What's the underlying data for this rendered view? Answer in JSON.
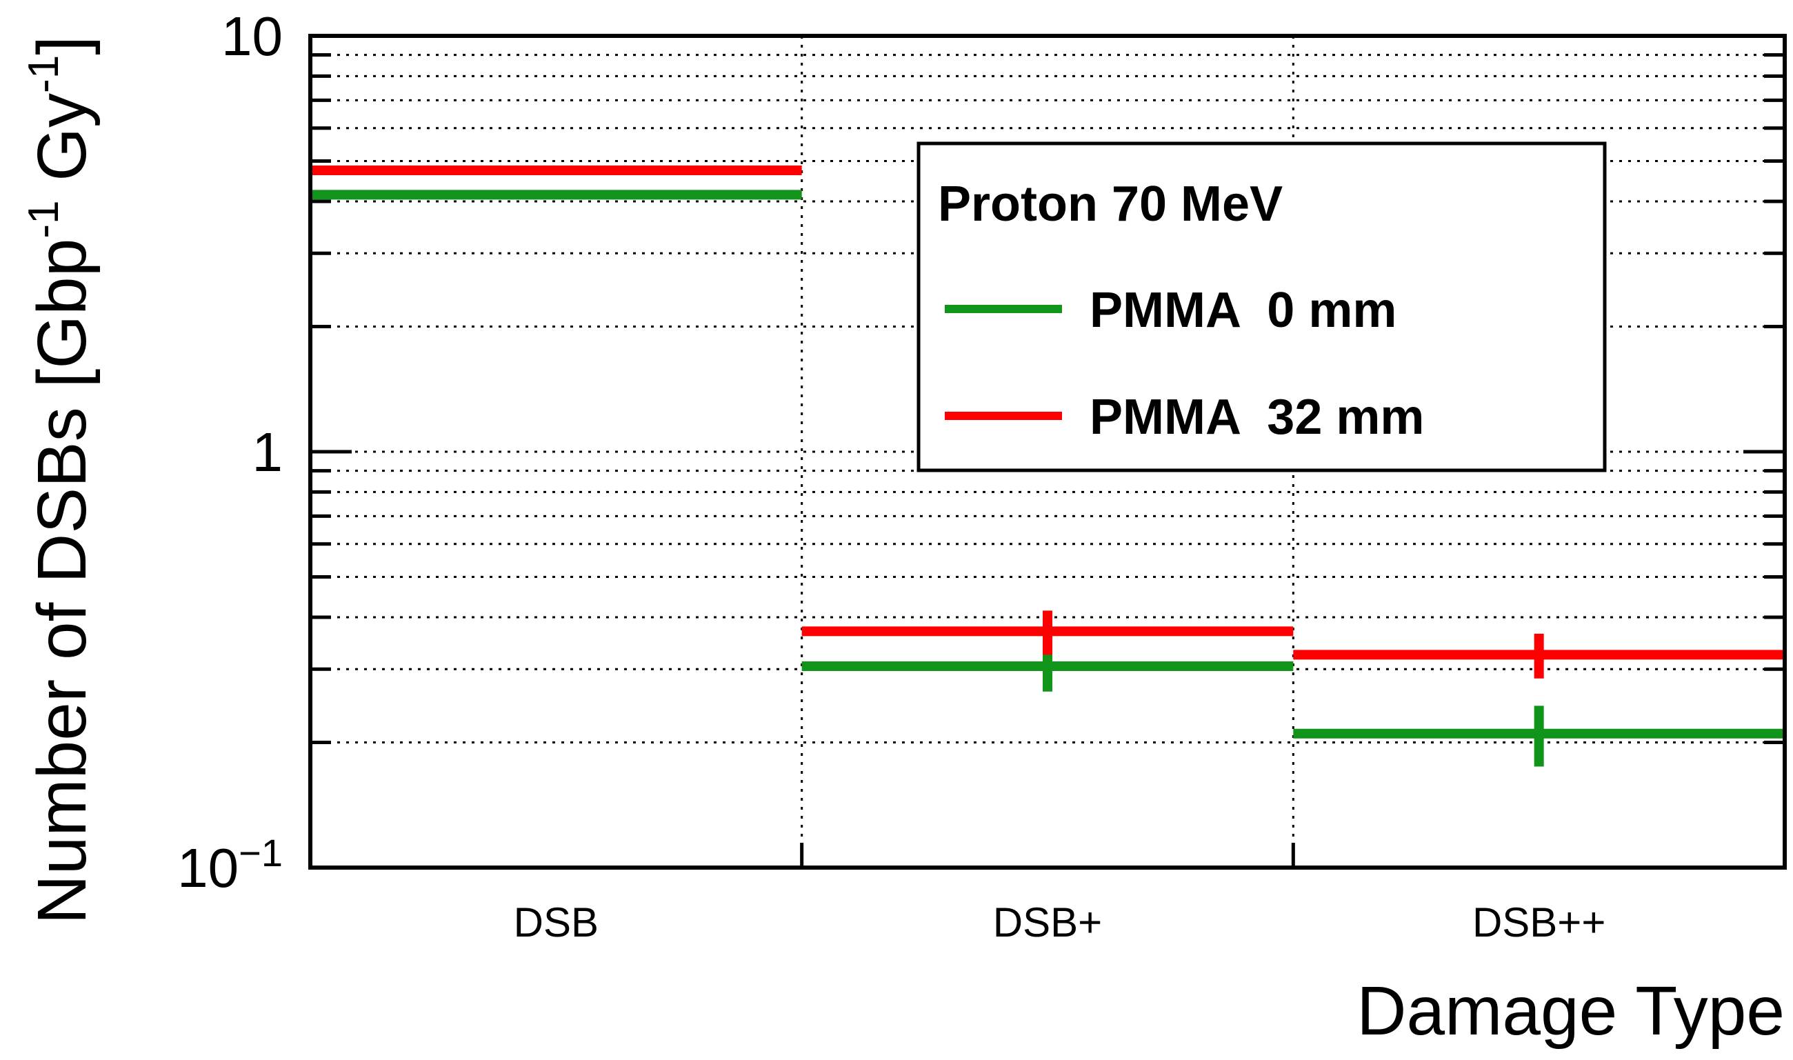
{
  "chart_data": {
    "type": "histogram-step",
    "title": "",
    "xlabel": "Damage Type",
    "ylabel": "Number of DSBs [Gbp",
    "ylabel_sup1": "-1",
    "ylabel_mid": " Gy",
    "ylabel_sup2": "-1",
    "ylabel_end": "]",
    "yscale": "log",
    "ylim": [
      0.1,
      10
    ],
    "y_ticks": [
      {
        "value": 10,
        "label": "10"
      },
      {
        "value": 1,
        "label": "1"
      },
      {
        "value": 0.1,
        "base": "10",
        "exp": "−1"
      }
    ],
    "categories": [
      "DSB",
      "DSB+",
      "DSB++"
    ],
    "grid": true,
    "legend": {
      "header": "Proton 70 MeV",
      "position": "top-center"
    },
    "series": [
      {
        "name": "PMMA  0 mm",
        "color": "#11941a",
        "values": [
          4.15,
          0.305,
          0.21
        ],
        "errors": [
          0.06,
          0.04,
          0.035
        ]
      },
      {
        "name": "PMMA  32 mm",
        "color": "#ff0000",
        "values": [
          4.75,
          0.37,
          0.325
        ],
        "errors": [
          0.07,
          0.045,
          0.04
        ]
      }
    ]
  }
}
